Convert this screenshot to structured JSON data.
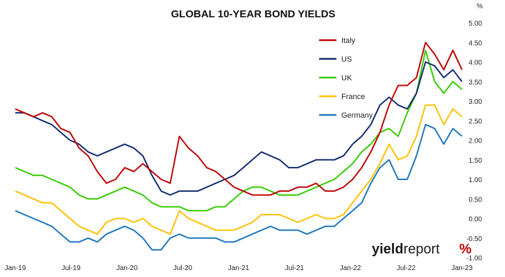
{
  "chart_data": {
    "type": "line",
    "title": "GLOBAL 10-YEAR BOND YIELDS",
    "yunit": "%",
    "ylim": [
      -1.0,
      5.0
    ],
    "ytick_labels": [
      "5.00",
      "4.50",
      "4.00",
      "3.50",
      "3.00",
      "2.50",
      "2.00",
      "1.50",
      "1.00",
      "0.50",
      "0.00",
      "-0.50",
      "-1.00"
    ],
    "x_tick_labels": [
      "Jan-19",
      "Jul-19",
      "Jan-20",
      "Jul-20",
      "Jan-21",
      "Jul-21",
      "Jan-22",
      "Jul-22",
      "Jan-23"
    ],
    "x": [
      0,
      1,
      2,
      3,
      4,
      5,
      6,
      7,
      8,
      9,
      10,
      11,
      12,
      13,
      14,
      15,
      16,
      17,
      18,
      19,
      20,
      21,
      22,
      23,
      24,
      25,
      26,
      27,
      28,
      29,
      30,
      31,
      32,
      33,
      34,
      35,
      36,
      37,
      38,
      39,
      40,
      41,
      42,
      43,
      44,
      45,
      46,
      47,
      48,
      49
    ],
    "legend_position": "top-right",
    "grid": false,
    "series": [
      {
        "name": "Italy",
        "color": "#c00000",
        "values": [
          2.8,
          2.7,
          2.6,
          2.7,
          2.6,
          2.3,
          2.2,
          1.8,
          1.6,
          1.2,
          0.9,
          1.0,
          1.3,
          1.2,
          1.4,
          1.2,
          1.0,
          0.9,
          2.1,
          1.8,
          1.6,
          1.3,
          1.2,
          1.0,
          0.8,
          0.7,
          0.6,
          0.6,
          0.6,
          0.7,
          0.7,
          0.8,
          0.8,
          0.9,
          0.7,
          0.7,
          0.8,
          1.0,
          1.3,
          1.7,
          2.2,
          2.9,
          3.4,
          3.4,
          3.6,
          4.5,
          4.2,
          3.8,
          4.3,
          3.8
        ]
      },
      {
        "name": "US",
        "color": "#10296f",
        "values": [
          2.7,
          2.7,
          2.6,
          2.5,
          2.4,
          2.2,
          2.0,
          1.9,
          1.7,
          1.6,
          1.7,
          1.8,
          1.9,
          1.8,
          1.6,
          1.1,
          0.7,
          0.6,
          0.7,
          0.7,
          0.7,
          0.8,
          0.9,
          1.0,
          1.1,
          1.3,
          1.5,
          1.7,
          1.6,
          1.5,
          1.3,
          1.3,
          1.4,
          1.5,
          1.5,
          1.5,
          1.6,
          1.9,
          2.1,
          2.4,
          2.9,
          3.1,
          2.9,
          2.8,
          3.2,
          4.0,
          3.9,
          3.6,
          3.8,
          3.5
        ]
      },
      {
        "name": "UK",
        "color": "#33cc00",
        "values": [
          1.3,
          1.2,
          1.1,
          1.1,
          1.0,
          0.9,
          0.8,
          0.6,
          0.5,
          0.5,
          0.6,
          0.7,
          0.8,
          0.7,
          0.6,
          0.4,
          0.3,
          0.3,
          0.3,
          0.2,
          0.2,
          0.2,
          0.3,
          0.3,
          0.5,
          0.7,
          0.8,
          0.8,
          0.7,
          0.6,
          0.6,
          0.6,
          0.7,
          0.8,
          0.9,
          1.0,
          1.2,
          1.4,
          1.7,
          1.9,
          2.2,
          2.3,
          2.1,
          2.7,
          3.2,
          4.3,
          3.5,
          3.2,
          3.5,
          3.3
        ]
      },
      {
        "name": "France",
        "color": "#ffc000",
        "values": [
          0.7,
          0.6,
          0.5,
          0.4,
          0.4,
          0.2,
          0.0,
          -0.2,
          -0.3,
          -0.4,
          -0.1,
          0.0,
          0.0,
          -0.1,
          0.0,
          -0.2,
          -0.3,
          -0.4,
          0.2,
          0.0,
          -0.1,
          -0.2,
          -0.3,
          -0.3,
          -0.3,
          -0.2,
          -0.1,
          0.1,
          0.1,
          0.1,
          0.0,
          -0.1,
          0.0,
          0.1,
          0.0,
          0.0,
          0.1,
          0.4,
          0.7,
          1.0,
          1.4,
          1.9,
          1.5,
          1.6,
          2.1,
          2.9,
          2.9,
          2.4,
          2.8,
          2.6
        ]
      },
      {
        "name": "Germany",
        "color": "#1c75bc",
        "values": [
          0.2,
          0.1,
          0.0,
          -0.1,
          -0.2,
          -0.4,
          -0.6,
          -0.6,
          -0.5,
          -0.6,
          -0.4,
          -0.3,
          -0.2,
          -0.3,
          -0.5,
          -0.8,
          -0.8,
          -0.5,
          -0.4,
          -0.5,
          -0.5,
          -0.5,
          -0.5,
          -0.6,
          -0.6,
          -0.5,
          -0.4,
          -0.3,
          -0.2,
          -0.3,
          -0.3,
          -0.3,
          -0.4,
          -0.3,
          -0.2,
          -0.2,
          0.0,
          0.2,
          0.4,
          0.9,
          1.3,
          1.5,
          1.0,
          1.0,
          1.6,
          2.4,
          2.3,
          1.9,
          2.3,
          2.1
        ]
      }
    ]
  },
  "logo": {
    "word_part1": "yield",
    "word_part2": "report",
    "symbol": "%"
  }
}
